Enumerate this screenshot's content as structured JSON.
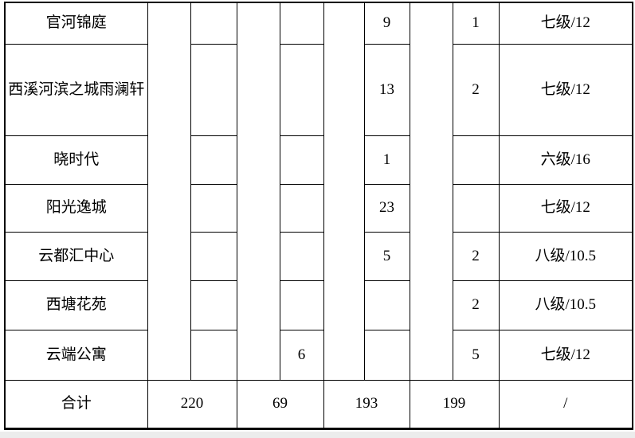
{
  "page": {
    "background_color": "#ffffff",
    "border_color": "#000000",
    "bottom_strip_color": "#ececec"
  },
  "table": {
    "rows": [
      {
        "name": "官河锦庭",
        "c1": "",
        "c2": "",
        "c3": "9",
        "c4": "1",
        "grade": "七级/12"
      },
      {
        "name": "西溪河滨之城雨澜轩",
        "c1": "",
        "c2": "",
        "c3": "13",
        "c4": "2",
        "grade": "七级/12"
      },
      {
        "name": "晓时代",
        "c1": "",
        "c2": "",
        "c3": "1",
        "c4": "",
        "grade": "六级/16"
      },
      {
        "name": "阳光逸城",
        "c1": "",
        "c2": "",
        "c3": "23",
        "c4": "",
        "grade": "七级/12"
      },
      {
        "name": "云都汇中心",
        "c1": "",
        "c2": "",
        "c3": "5",
        "c4": "2",
        "grade": "八级/10.5"
      },
      {
        "name": "西塘花苑",
        "c1": "",
        "c2": "",
        "c3": "",
        "c4": "2",
        "grade": "八级/10.5"
      },
      {
        "name": "云端公寓",
        "c1": "",
        "c2": "6",
        "c3": "",
        "c4": "5",
        "grade": "七级/12"
      }
    ],
    "total": {
      "label": "合计",
      "t1": "220",
      "t2": "69",
      "t3": "193",
      "t4": "199",
      "grade": "/"
    }
  }
}
